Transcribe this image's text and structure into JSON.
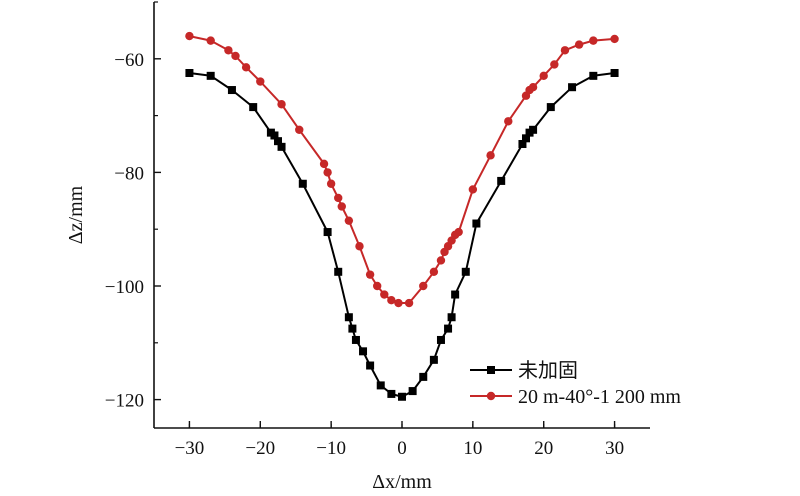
{
  "chart_data": {
    "type": "line",
    "title": "",
    "xlabel": "Δx/mm",
    "ylabel": "Δz/mm",
    "xlim": [
      -35,
      35
    ],
    "ylim": [
      -125,
      -50
    ],
    "xticks": [
      -30,
      -20,
      -10,
      0,
      10,
      20,
      30
    ],
    "yticks": [
      -120,
      -100,
      -80,
      -60
    ],
    "xtick_labels": [
      "−30",
      "−20",
      "−10",
      "0",
      "10",
      "20",
      "30"
    ],
    "ytick_labels": [
      "−120",
      "−100",
      "−80",
      "−60"
    ],
    "grid": false,
    "legend_position": "bottom-right",
    "series": [
      {
        "name": "未加固",
        "color": "#000000",
        "marker": "square",
        "x": [
          -30,
          -27,
          -24,
          -21,
          -18.5,
          -18,
          -17.5,
          -17,
          -14,
          -10.5,
          -9,
          -7.5,
          -7,
          -6.5,
          -5.5,
          -4.5,
          -3,
          -1.5,
          0,
          1.5,
          3,
          4.5,
          5.5,
          6.5,
          7,
          7.5,
          9,
          10.5,
          14,
          17,
          17.5,
          18,
          18.5,
          21,
          24,
          27,
          30
        ],
        "y": [
          -62.5,
          -63,
          -65.5,
          -68.5,
          -73,
          -73.5,
          -74.5,
          -75.5,
          -82,
          -90.5,
          -97.5,
          -105.5,
          -107.5,
          -109.5,
          -111.5,
          -114,
          -117.5,
          -119,
          -119.5,
          -118.5,
          -116,
          -113,
          -109.5,
          -107.5,
          -105.5,
          -101.5,
          -97.5,
          -89,
          -81.5,
          -75,
          -74,
          -73,
          -72.5,
          -68.5,
          -65,
          -63,
          -62.5
        ]
      },
      {
        "name": "20 m-40°-1 200 mm",
        "color": "#c62828",
        "marker": "circle",
        "x": [
          -30,
          -27,
          -24.5,
          -23.5,
          -22,
          -20,
          -17,
          -14.5,
          -11,
          -10.5,
          -10,
          -9,
          -8.5,
          -7.5,
          -6,
          -4.5,
          -3.5,
          -2.5,
          -1.5,
          -0.5,
          1,
          3,
          4.5,
          5.5,
          6,
          6.5,
          7,
          7.5,
          8,
          10,
          12.5,
          15,
          17.5,
          18,
          18.5,
          20,
          21.5,
          23,
          25,
          27,
          30
        ],
        "y": [
          -56,
          -56.8,
          -58.5,
          -59.5,
          -61.5,
          -64,
          -68,
          -72.5,
          -78.5,
          -80,
          -82,
          -84.5,
          -86,
          -88.5,
          -93,
          -98,
          -100,
          -101.5,
          -102.5,
          -103,
          -103,
          -100,
          -97.5,
          -95.5,
          -94,
          -93,
          -92,
          -91,
          -90.5,
          -83,
          -77,
          -71,
          -66.5,
          -65.5,
          -65,
          -63,
          -61,
          -58.5,
          -57.5,
          -56.8,
          -56.5
        ]
      }
    ]
  }
}
